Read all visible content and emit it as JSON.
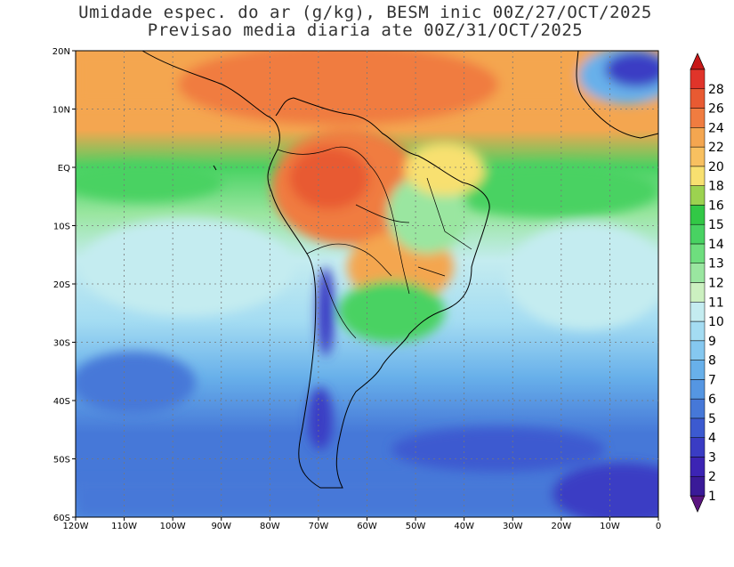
{
  "header": {
    "title_line1": "Umidade espec. do ar (g/kg), BESM inic 00Z/27/OCT/2025",
    "title_line2": "Previsao media diaria ate 00Z/31/OCT/2025"
  },
  "map": {
    "lon_labels": [
      "120W",
      "110W",
      "100W",
      "90W",
      "80W",
      "70W",
      "60W",
      "50W",
      "40W",
      "30W",
      "20W",
      "10W",
      "0"
    ],
    "lat_labels": [
      "20N",
      "10N",
      "EQ",
      "10S",
      "20S",
      "30S",
      "40S",
      "50S",
      "60S"
    ],
    "gridlines": true,
    "features": [
      "coastlines",
      "country-borders",
      "state-borders"
    ]
  },
  "colorbar": {
    "levels": [
      "1",
      "2",
      "3",
      "4",
      "5",
      "6",
      "7",
      "8",
      "9",
      "10",
      "11",
      "12",
      "13",
      "14",
      "15",
      "16",
      "18",
      "20",
      "22",
      "24",
      "26",
      "28"
    ],
    "colors": [
      "#3a1a98",
      "#3c24b4",
      "#3a3cc4",
      "#3c5ad0",
      "#4678d8",
      "#5596e2",
      "#68b0ea",
      "#85c8f0",
      "#a4dcf2",
      "#c4ecf0",
      "#ccf0c0",
      "#9ae6a0",
      "#6ede7e",
      "#48d262",
      "#32c846",
      "#9cd250",
      "#f8e070",
      "#f8c060",
      "#f4a650",
      "#f07c40",
      "#e85a32",
      "#e0342a"
    ],
    "under_color": "#5a1480",
    "over_color": "#c81818"
  }
}
